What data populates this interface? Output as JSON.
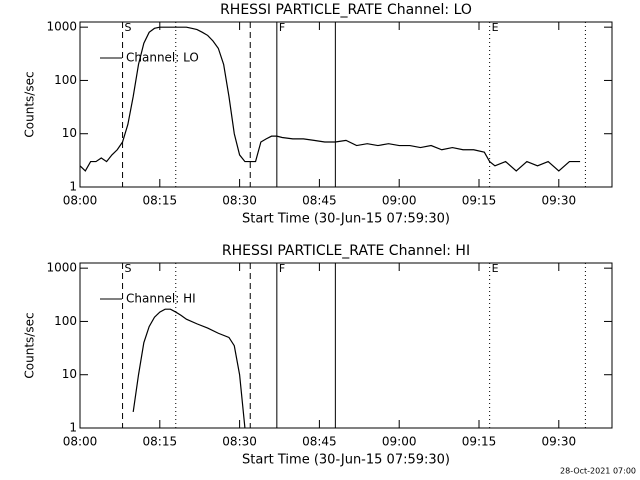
{
  "chart_data": [
    {
      "type": "line",
      "title": "RHESSI PARTICLE_RATE Channel: LO",
      "xlabel": "Start Time (30-Jun-15 07:59:30)",
      "ylabel": "Counts/sec",
      "log_y": true,
      "ylim": [
        1,
        1250
      ],
      "yticks": [
        1,
        10,
        100,
        1000
      ],
      "xlim": [
        "08:00",
        "09:40"
      ],
      "xticks": [
        "08:00",
        "08:15",
        "08:30",
        "08:45",
        "09:00",
        "09:15",
        "09:30"
      ],
      "legend": "upper left",
      "x": [
        "08:00",
        "08:01",
        "08:02",
        "08:03",
        "08:04",
        "08:05",
        "08:06",
        "08:07",
        "08:08",
        "08:09",
        "08:10",
        "08:11",
        "08:12",
        "08:13",
        "08:14",
        "08:15",
        "08:16",
        "08:17",
        "08:18",
        "08:19",
        "08:20",
        "08:21",
        "08:22",
        "08:23",
        "08:24",
        "08:25",
        "08:26",
        "08:27",
        "08:28",
        "08:29",
        "08:30",
        "08:31",
        "08:32",
        "08:33",
        "08:34",
        "08:35",
        "08:36",
        "08:37",
        "08:38",
        "08:40",
        "08:42",
        "08:44",
        "08:46",
        "08:48",
        "08:50",
        "08:52",
        "08:54",
        "08:56",
        "08:58",
        "09:00",
        "09:02",
        "09:04",
        "09:06",
        "09:08",
        "09:10",
        "09:12",
        "09:14",
        "09:16",
        "09:17",
        "09:18",
        "09:20",
        "09:22",
        "09:24",
        "09:26",
        "09:28",
        "09:30",
        "09:32",
        "09:34"
      ],
      "series": [
        {
          "name": "Channel: LO",
          "color": "#000000",
          "values": [
            2.5,
            2,
            3,
            3,
            3.5,
            3,
            4,
            5,
            7,
            15,
            50,
            200,
            500,
            800,
            950,
            1000,
            1000,
            1000,
            1000,
            1000,
            1000,
            950,
            900,
            800,
            700,
            550,
            400,
            200,
            50,
            10,
            4,
            3,
            3,
            3,
            7,
            8,
            9,
            9,
            8.5,
            8,
            8,
            7.5,
            7,
            7,
            7.5,
            6,
            6.5,
            6,
            6.5,
            6,
            6,
            5.5,
            6,
            5,
            5.5,
            5,
            5,
            4.5,
            3,
            2.5,
            3,
            2,
            3,
            2.5,
            3,
            2,
            3,
            3
          ]
        }
      ],
      "vlines": [
        {
          "x": "08:08",
          "style": "dashed"
        },
        {
          "x": "08:18",
          "style": "dotted"
        },
        {
          "x": "08:32",
          "style": "dashed"
        },
        {
          "x": "08:37",
          "style": "solid"
        },
        {
          "x": "08:48",
          "style": "solid"
        },
        {
          "x": "09:17",
          "style": "dotted"
        },
        {
          "x": "09:35",
          "style": "dotted"
        }
      ],
      "annotations": [
        {
          "text": "S",
          "x": "08:08"
        },
        {
          "text": "F",
          "x": "08:37"
        },
        {
          "text": "E",
          "x": "09:17"
        }
      ]
    },
    {
      "type": "line",
      "title": "RHESSI PARTICLE_RATE Channel: HI",
      "xlabel": "Start Time (30-Jun-15 07:59:30)",
      "ylabel": "Counts/sec",
      "log_y": true,
      "ylim": [
        1,
        1250
      ],
      "yticks": [
        1,
        10,
        100,
        1000
      ],
      "xlim": [
        "08:00",
        "09:40"
      ],
      "xticks": [
        "08:00",
        "08:15",
        "08:30",
        "08:45",
        "09:00",
        "09:15",
        "09:30"
      ],
      "legend": "upper left",
      "x": [
        "08:10",
        "08:11",
        "08:12",
        "08:13",
        "08:14",
        "08:15",
        "08:16",
        "08:17",
        "08:18",
        "08:19",
        "08:20",
        "08:22",
        "08:24",
        "08:26",
        "08:28",
        "08:29",
        "08:30",
        "08:31"
      ],
      "series": [
        {
          "name": "Channel: HI",
          "color": "#000000",
          "values": [
            2,
            10,
            40,
            80,
            120,
            150,
            170,
            170,
            150,
            130,
            110,
            90,
            75,
            60,
            50,
            35,
            10,
            1
          ]
        }
      ],
      "vlines": [
        {
          "x": "08:08",
          "style": "dashed"
        },
        {
          "x": "08:18",
          "style": "dotted"
        },
        {
          "x": "08:32",
          "style": "dashed"
        },
        {
          "x": "08:37",
          "style": "solid"
        },
        {
          "x": "08:48",
          "style": "solid"
        },
        {
          "x": "09:17",
          "style": "dotted"
        },
        {
          "x": "09:35",
          "style": "dotted"
        }
      ],
      "annotations": [
        {
          "text": "S",
          "x": "08:08"
        },
        {
          "text": "F",
          "x": "08:37"
        },
        {
          "text": "E",
          "x": "09:17"
        }
      ]
    }
  ],
  "footer": "28-Oct-2021 07:00"
}
